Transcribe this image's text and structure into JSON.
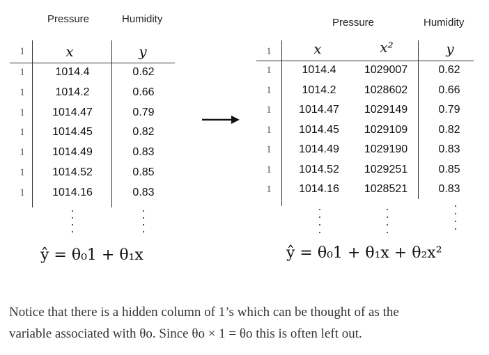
{
  "left_table": {
    "header_pressure": "Pressure",
    "header_humidity": "Humidity",
    "ones_header": "1",
    "col_x": "x",
    "col_y": "y",
    "rows": [
      {
        "one": "1",
        "x": "1014.4",
        "y": "0.62"
      },
      {
        "one": "1",
        "x": "1014.2",
        "y": "0.66"
      },
      {
        "one": "1",
        "x": "1014.47",
        "y": "0.79"
      },
      {
        "one": "1",
        "x": "1014.45",
        "y": "0.82"
      },
      {
        "one": "1",
        "x": "1014.49",
        "y": "0.83"
      },
      {
        "one": "1",
        "x": "1014.52",
        "y": "0.85"
      },
      {
        "one": "1",
        "x": "1014.16",
        "y": "0.83"
      }
    ]
  },
  "right_table": {
    "header_pressure": "Pressure",
    "header_humidity": "Humidity",
    "ones_header": "1",
    "col_x": "x",
    "col_x2": "x²",
    "col_y": "y",
    "rows": [
      {
        "one": "1",
        "x": "1014.4",
        "x2": "1029007",
        "y": "0.62"
      },
      {
        "one": "1",
        "x": "1014.2",
        "x2": "1028602",
        "y": "0.66"
      },
      {
        "one": "1",
        "x": "1014.47",
        "x2": "1029149",
        "y": "0.79"
      },
      {
        "one": "1",
        "x": "1014.45",
        "x2": "1029109",
        "y": "0.82"
      },
      {
        "one": "1",
        "x": "1014.49",
        "x2": "1029190",
        "y": "0.83"
      },
      {
        "one": "1",
        "x": "1014.52",
        "x2": "1029251",
        "y": "0.85"
      },
      {
        "one": "1",
        "x": "1014.16",
        "x2": "1028521",
        "y": "0.83"
      }
    ]
  },
  "formula_left": "ŷ = θ₀1 + θ₁x",
  "formula_right": "ŷ = θ₀1 + θ₁x + θ₂x²",
  "caption_line1": "Notice that there is a hidden column of 1’s which can be thought of as the",
  "caption_line2": "variable associated with θo. Since θo × 1 = θo this is often left out."
}
